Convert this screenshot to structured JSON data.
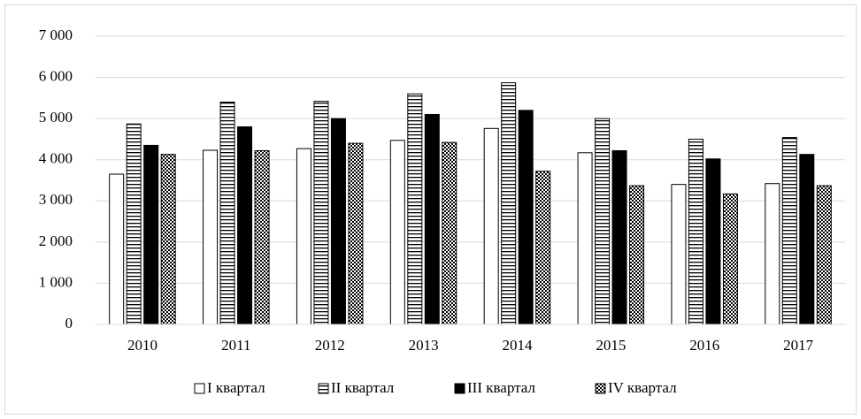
{
  "chart_data": {
    "type": "bar",
    "categories": [
      "2010",
      "2011",
      "2012",
      "2013",
      "2014",
      "2015",
      "2016",
      "2017"
    ],
    "series": [
      {
        "name": "I квартал",
        "color": "#ffffff",
        "values": [
          3650,
          4230,
          4270,
          4470,
          4760,
          4170,
          3400,
          3420
        ]
      },
      {
        "name": "II квартал",
        "color": "#ffffff",
        "values": [
          4870,
          5400,
          5420,
          5600,
          5870,
          5000,
          4500,
          4540
        ]
      },
      {
        "name": "III квартал",
        "color": "#000000",
        "values": [
          4350,
          4800,
          5000,
          5100,
          5200,
          4220,
          4020,
          4130
        ]
      },
      {
        "name": "IV квартал",
        "color": "#ffffff",
        "values": [
          4130,
          4220,
          4400,
          4420,
          3720,
          3370,
          3170,
          3370
        ]
      }
    ],
    "ylim": [
      0,
      7000
    ],
    "yticks": [
      0,
      {
        "value": 1000,
        "label": "1 000"
      },
      {
        "value": 2000,
        "label": "2 000"
      },
      {
        "value": 3000,
        "label": "3 000"
      },
      {
        "value": 4000,
        "label": "4 000"
      },
      {
        "value": 5000,
        "label": "5 000"
      },
      {
        "value": 6000,
        "label": "6 000"
      },
      {
        "value": 7000,
        "label": "7 000"
      }
    ],
    "grid": true,
    "legend": "bottom"
  }
}
